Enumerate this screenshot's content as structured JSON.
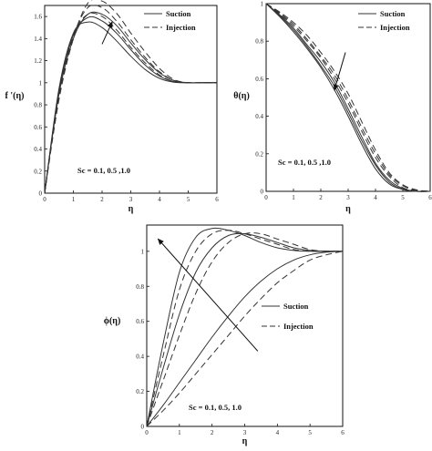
{
  "chart_data": [
    {
      "type": "line",
      "id": "f_prime",
      "xlabel": "η",
      "ylabel": "f '(η)",
      "xlim": [
        0,
        6
      ],
      "ylim": [
        0,
        1.7
      ],
      "xticks": [
        0,
        1,
        2,
        3,
        4,
        5,
        6
      ],
      "yticks": [
        0,
        0.2,
        0.4,
        0.6,
        0.8,
        1,
        1.2,
        1.4,
        1.6
      ],
      "legend_position": "top-right",
      "legend": [
        "Suction",
        "Injection"
      ],
      "annotation": "Sc = 0.1, 0.5 ,1.0",
      "arrow": {
        "from": [
          2.0,
          1.35
        ],
        "to": [
          2.35,
          1.55
        ]
      },
      "series": [
        {
          "style": "solid",
          "x": [
            0,
            0.5,
            1.0,
            1.5,
            2.0,
            2.5,
            3.0,
            3.5,
            4.0,
            4.5,
            5.0,
            5.5,
            6.0
          ],
          "y": [
            0,
            0.95,
            1.45,
            1.55,
            1.5,
            1.38,
            1.24,
            1.12,
            1.04,
            1.005,
            1.0,
            1.0,
            1.0
          ]
        },
        {
          "style": "solid",
          "x": [
            0,
            0.5,
            1.0,
            1.5,
            2.0,
            2.5,
            3.0,
            3.5,
            4.0,
            4.5,
            5.0,
            5.5,
            6.0
          ],
          "y": [
            0,
            0.93,
            1.43,
            1.59,
            1.56,
            1.45,
            1.3,
            1.16,
            1.06,
            1.01,
            1.0,
            1.0,
            1.0
          ]
        },
        {
          "style": "solid",
          "x": [
            0,
            0.5,
            1.0,
            1.5,
            2.0,
            2.5,
            3.0,
            3.5,
            4.0,
            4.5,
            5.0,
            5.5,
            6.0
          ],
          "y": [
            0,
            0.9,
            1.4,
            1.62,
            1.62,
            1.52,
            1.36,
            1.21,
            1.09,
            1.02,
            1.0,
            1.0,
            1.0
          ]
        },
        {
          "style": "dashed",
          "x": [
            0,
            0.5,
            1.0,
            1.5,
            2.0,
            2.5,
            3.0,
            3.5,
            4.0,
            4.5,
            5.0,
            5.5,
            6.0
          ],
          "y": [
            0,
            0.9,
            1.43,
            1.62,
            1.6,
            1.48,
            1.32,
            1.18,
            1.07,
            1.01,
            1.0,
            1.0,
            1.0
          ]
        },
        {
          "style": "dashed",
          "x": [
            0,
            0.5,
            1.0,
            1.5,
            2.0,
            2.5,
            3.0,
            3.5,
            4.0,
            4.5,
            5.0,
            5.5,
            6.0
          ],
          "y": [
            0,
            0.88,
            1.42,
            1.68,
            1.68,
            1.56,
            1.39,
            1.23,
            1.1,
            1.02,
            1.0,
            1.0,
            1.0
          ]
        },
        {
          "style": "dashed",
          "x": [
            0,
            0.5,
            1.0,
            1.5,
            2.0,
            2.5,
            3.0,
            3.5,
            4.0,
            4.5,
            5.0,
            5.5,
            6.0
          ],
          "y": [
            0,
            0.85,
            1.4,
            1.72,
            1.74,
            1.63,
            1.45,
            1.28,
            1.13,
            1.03,
            1.0,
            1.0,
            1.0
          ]
        }
      ]
    },
    {
      "type": "line",
      "id": "theta",
      "xlabel": "η",
      "ylabel": "θ(η)",
      "xlim": [
        0,
        6
      ],
      "ylim": [
        0,
        1
      ],
      "xticks": [
        0,
        1,
        2,
        3,
        4,
        5,
        6
      ],
      "yticks": [
        0,
        0.2,
        0.4,
        0.6,
        0.8,
        1
      ],
      "legend_position": "top-right",
      "legend": [
        "Suction",
        "Injection"
      ],
      "annotation": "Sc = 0.1, 0.5 ,1.0",
      "arrow": {
        "from": [
          2.9,
          0.74
        ],
        "to": [
          2.5,
          0.54
        ]
      },
      "series": [
        {
          "style": "solid",
          "x": [
            0,
            0.5,
            1.0,
            1.5,
            2.0,
            2.5,
            3.0,
            3.5,
            4.0,
            4.5,
            5.0,
            5.5,
            6.0
          ],
          "y": [
            1.0,
            0.93,
            0.85,
            0.76,
            0.66,
            0.54,
            0.4,
            0.25,
            0.12,
            0.04,
            0.01,
            0.0,
            0.0
          ]
        },
        {
          "style": "solid",
          "x": [
            0,
            0.5,
            1.0,
            1.5,
            2.0,
            2.5,
            3.0,
            3.5,
            4.0,
            4.5,
            5.0,
            5.5,
            6.0
          ],
          "y": [
            1.0,
            0.935,
            0.86,
            0.77,
            0.67,
            0.56,
            0.42,
            0.27,
            0.14,
            0.05,
            0.01,
            0.0,
            0.0
          ]
        },
        {
          "style": "solid",
          "x": [
            0,
            0.5,
            1.0,
            1.5,
            2.0,
            2.5,
            3.0,
            3.5,
            4.0,
            4.5,
            5.0,
            5.5,
            6.0
          ],
          "y": [
            1.0,
            0.94,
            0.87,
            0.78,
            0.69,
            0.58,
            0.44,
            0.29,
            0.15,
            0.06,
            0.015,
            0.0,
            0.0
          ]
        },
        {
          "style": "dashed",
          "x": [
            0,
            0.5,
            1.0,
            1.5,
            2.0,
            2.5,
            3.0,
            3.5,
            4.0,
            4.5,
            5.0,
            5.5,
            6.0
          ],
          "y": [
            1.0,
            0.945,
            0.88,
            0.8,
            0.71,
            0.6,
            0.47,
            0.32,
            0.18,
            0.08,
            0.02,
            0.005,
            0.0
          ]
        },
        {
          "style": "dashed",
          "x": [
            0,
            0.5,
            1.0,
            1.5,
            2.0,
            2.5,
            3.0,
            3.5,
            4.0,
            4.5,
            5.0,
            5.5,
            6.0
          ],
          "y": [
            1.0,
            0.95,
            0.89,
            0.81,
            0.72,
            0.62,
            0.49,
            0.34,
            0.2,
            0.09,
            0.03,
            0.005,
            0.0
          ]
        },
        {
          "style": "dashed",
          "x": [
            0,
            0.5,
            1.0,
            1.5,
            2.0,
            2.5,
            3.0,
            3.5,
            4.0,
            4.5,
            5.0,
            5.5,
            6.0
          ],
          "y": [
            1.0,
            0.955,
            0.9,
            0.83,
            0.74,
            0.64,
            0.52,
            0.37,
            0.22,
            0.1,
            0.035,
            0.008,
            0.0
          ]
        }
      ]
    },
    {
      "type": "line",
      "id": "phi",
      "xlabel": "η",
      "ylabel": "ϕ(η)",
      "xlim": [
        0,
        6
      ],
      "ylim": [
        0,
        1.15
      ],
      "xticks": [
        0,
        1,
        2,
        3,
        4,
        5,
        6
      ],
      "yticks": [
        0,
        0.2,
        0.4,
        0.6,
        0.8,
        1
      ],
      "legend_position": "center-right",
      "legend": [
        "Suction",
        "Injection"
      ],
      "annotation": "Sc = 0.1, 0.5, 1.0",
      "arrow": {
        "from": [
          3.4,
          0.43
        ],
        "to": [
          0.35,
          1.07
        ]
      },
      "series": [
        {
          "style": "solid",
          "x": [
            0,
            0.5,
            1.0,
            1.5,
            2.0,
            2.5,
            3.0,
            3.5,
            4.0,
            4.5,
            5.0,
            5.5,
            6.0
          ],
          "y": [
            0,
            0.47,
            0.88,
            1.08,
            1.13,
            1.12,
            1.09,
            1.05,
            1.02,
            1.005,
            1.0,
            1.0,
            1.0
          ]
        },
        {
          "style": "solid",
          "x": [
            0,
            0.5,
            1.0,
            1.5,
            2.0,
            2.5,
            3.0,
            3.5,
            4.0,
            4.5,
            5.0,
            5.5,
            6.0
          ],
          "y": [
            0,
            0.33,
            0.64,
            0.88,
            1.02,
            1.09,
            1.1,
            1.08,
            1.05,
            1.02,
            1.005,
            1.0,
            1.0
          ]
        },
        {
          "style": "solid",
          "x": [
            0,
            0.5,
            1.0,
            1.5,
            2.0,
            2.5,
            3.0,
            3.5,
            4.0,
            4.5,
            5.0,
            5.5,
            6.0
          ],
          "y": [
            0,
            0.12,
            0.25,
            0.38,
            0.51,
            0.63,
            0.74,
            0.83,
            0.9,
            0.95,
            0.98,
            0.995,
            1.0
          ]
        },
        {
          "style": "dashed",
          "x": [
            0,
            0.5,
            1.0,
            1.5,
            2.0,
            2.5,
            3.0,
            3.5,
            4.0,
            4.5,
            5.0,
            5.5,
            6.0
          ],
          "y": [
            0,
            0.4,
            0.78,
            1.0,
            1.1,
            1.12,
            1.1,
            1.07,
            1.04,
            1.01,
            1.0,
            1.0,
            1.0
          ]
        },
        {
          "style": "dashed",
          "x": [
            0,
            0.5,
            1.0,
            1.5,
            2.0,
            2.5,
            3.0,
            3.5,
            4.0,
            4.5,
            5.0,
            5.5,
            6.0
          ],
          "y": [
            0,
            0.26,
            0.52,
            0.76,
            0.94,
            1.05,
            1.1,
            1.1,
            1.07,
            1.04,
            1.01,
            1.0,
            1.0
          ]
        },
        {
          "style": "dashed",
          "x": [
            0,
            0.5,
            1.0,
            1.5,
            2.0,
            2.5,
            3.0,
            3.5,
            4.0,
            4.5,
            5.0,
            5.5,
            6.0
          ],
          "y": [
            0,
            0.09,
            0.19,
            0.3,
            0.41,
            0.52,
            0.63,
            0.73,
            0.82,
            0.89,
            0.95,
            0.98,
            1.0
          ]
        }
      ]
    }
  ]
}
